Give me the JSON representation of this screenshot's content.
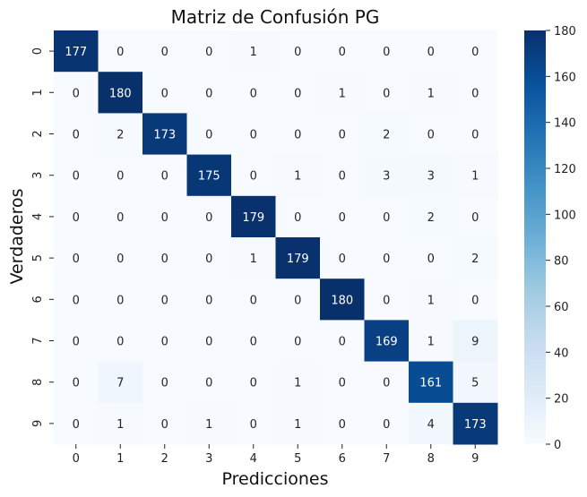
{
  "chart_data": {
    "type": "heatmap",
    "title": "Matriz de Confusión PG",
    "xlabel": "Predicciones",
    "ylabel": "Verdaderos",
    "x_categories": [
      "0",
      "1",
      "2",
      "3",
      "4",
      "5",
      "6",
      "7",
      "8",
      "9"
    ],
    "y_categories": [
      "0",
      "1",
      "2",
      "3",
      "4",
      "5",
      "6",
      "7",
      "8",
      "9"
    ],
    "values": [
      [
        177,
        0,
        0,
        0,
        1,
        0,
        0,
        0,
        0,
        0
      ],
      [
        0,
        180,
        0,
        0,
        0,
        0,
        1,
        0,
        1,
        0
      ],
      [
        0,
        2,
        173,
        0,
        0,
        0,
        0,
        2,
        0,
        0
      ],
      [
        0,
        0,
        0,
        175,
        0,
        1,
        0,
        3,
        3,
        1
      ],
      [
        0,
        0,
        0,
        0,
        179,
        0,
        0,
        0,
        2,
        0
      ],
      [
        0,
        0,
        0,
        0,
        1,
        179,
        0,
        0,
        0,
        2
      ],
      [
        0,
        0,
        0,
        0,
        0,
        0,
        180,
        0,
        1,
        0
      ],
      [
        0,
        0,
        0,
        0,
        0,
        0,
        0,
        169,
        1,
        9
      ],
      [
        0,
        7,
        0,
        0,
        0,
        1,
        0,
        0,
        161,
        5
      ],
      [
        0,
        1,
        0,
        1,
        0,
        1,
        0,
        0,
        4,
        173
      ]
    ],
    "colormap": "Blues",
    "vmin": 0,
    "vmax": 180,
    "colorbar_ticks": [
      0,
      20,
      40,
      60,
      80,
      100,
      120,
      140,
      160,
      180
    ]
  }
}
